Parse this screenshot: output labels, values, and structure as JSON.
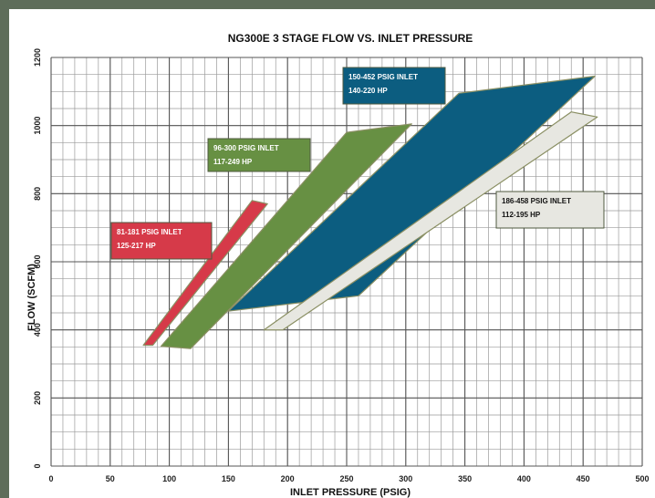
{
  "chart_data": {
    "type": "area",
    "title": "NG300E 3 STAGE FLOW VS. INLET PRESSURE",
    "xlabel": "INLET PRESSURE (PSIG)",
    "ylabel": "FLOW (SCFM)",
    "xlim": [
      0,
      500
    ],
    "ylim": [
      0,
      1200
    ],
    "x_ticks": [
      0,
      50,
      100,
      150,
      200,
      250,
      300,
      350,
      400,
      450,
      500
    ],
    "y_ticks": [
      0,
      200,
      400,
      600,
      800,
      1000,
      1200
    ],
    "grid": true,
    "series": [
      {
        "label_lines": [
          "150-452 PSIG INLET",
          "140-220 HP"
        ],
        "color": "#0c5d80",
        "points": [
          [
            150,
            455
          ],
          [
            345,
            1095
          ],
          [
            460,
            1145
          ],
          [
            260,
            500
          ]
        ]
      },
      {
        "label_lines": [
          "96-300 PSIG INLET",
          "117-249 HP"
        ],
        "color": "#679043",
        "points": [
          [
            93,
            352
          ],
          [
            250,
            980
          ],
          [
            305,
            1005
          ],
          [
            118,
            345
          ]
        ]
      },
      {
        "label_lines": [
          "186-458 PSIG INLET",
          "112-195 HP"
        ],
        "color": "#e7e7e1",
        "points": [
          [
            180,
            400
          ],
          [
            440,
            1040
          ],
          [
            462,
            1025
          ],
          [
            196,
            400
          ]
        ]
      },
      {
        "label_lines": [
          "81-181 PSIG INLET",
          "125-217 HP"
        ],
        "color": "#d63a49",
        "points": [
          [
            78,
            355
          ],
          [
            170,
            780
          ],
          [
            183,
            770
          ],
          [
            86,
            355
          ]
        ]
      }
    ]
  }
}
